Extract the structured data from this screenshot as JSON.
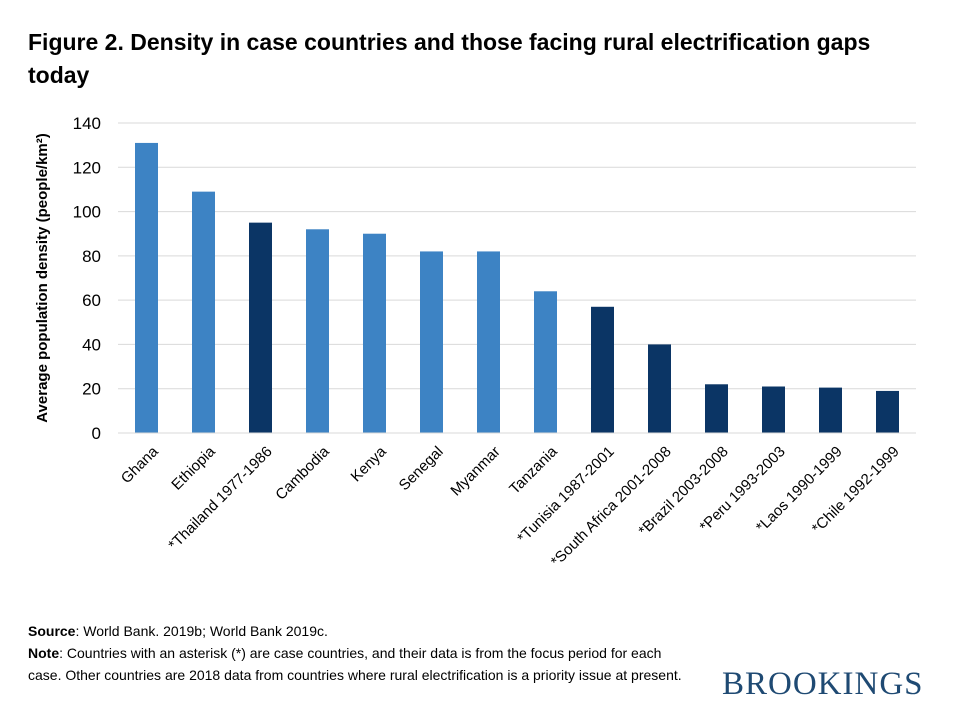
{
  "figure": {
    "title": "Figure 2. Density in case countries and those facing rural electrification gaps today"
  },
  "chart_data": {
    "type": "bar",
    "ylabel": "Average population density (people/km²)",
    "ylim": [
      0,
      140
    ],
    "yticks": [
      0,
      20,
      40,
      60,
      80,
      100,
      120,
      140
    ],
    "grid": true,
    "categories": [
      "Ghana",
      "Ethiopia",
      "*Thailand 1977-1986",
      "Cambodia",
      "Kenya",
      "Senegal",
      "Myanmar",
      "Tanzania",
      "*Tunisia 1987-2001",
      "*South Africa 2001-2008",
      "*Brazil 2003-2008",
      "*Peru 1993-2003",
      "*Laos 1990-1999",
      "*Chile 1992-1999"
    ],
    "values": [
      131,
      109,
      95,
      92,
      90,
      82,
      82,
      64,
      57,
      40,
      22,
      21,
      20.5,
      19
    ],
    "colors": {
      "current": "#3d83c4",
      "case": "#0b3565"
    },
    "bar_groups": [
      "current",
      "current",
      "case",
      "current",
      "current",
      "current",
      "current",
      "current",
      "case",
      "case",
      "case",
      "case",
      "case",
      "case"
    ]
  },
  "footnotes": {
    "source_label": "Source",
    "source_text": ": World Bank. 2019b; World Bank 2019c.",
    "note_label": "Note",
    "note_text": ": Countries with an asterisk (*) are case countries, and their data is from the focus period for each case. Other countries are 2018 data from countries where rural electrification is a priority issue at present."
  },
  "logo": {
    "text": "BROOKINGS"
  }
}
